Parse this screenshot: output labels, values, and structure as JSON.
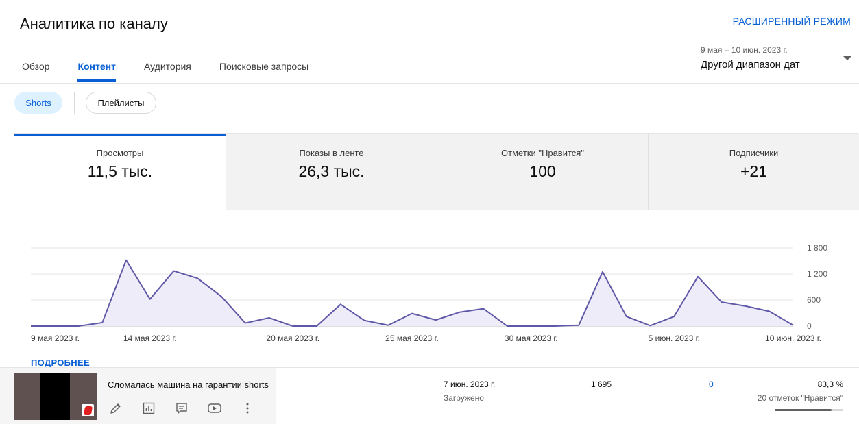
{
  "header": {
    "title": "Аналитика по каналу",
    "advanced_mode": "РАСШИРЕННЫЙ РЕЖИМ"
  },
  "tabs": [
    {
      "label": "Обзор",
      "active": false
    },
    {
      "label": "Контент",
      "active": true
    },
    {
      "label": "Аудитория",
      "active": false
    },
    {
      "label": "Поисковые запросы",
      "active": false
    }
  ],
  "date_range": {
    "range": "9 мая – 10 июн. 2023 г.",
    "label": "Другой диапазон дат"
  },
  "chips": [
    {
      "label": "Shorts",
      "selected": true
    },
    {
      "label": "Плейлисты",
      "selected": false
    }
  ],
  "metrics": [
    {
      "label": "Просмотры",
      "value": "11,5 тыс."
    },
    {
      "label": "Показы в ленте",
      "value": "26,3 тыс."
    },
    {
      "label": "Отметки \"Нравится\"",
      "value": "100"
    },
    {
      "label": "Подписчики",
      "value": "+21"
    }
  ],
  "chart_data": {
    "type": "area",
    "x": [
      "2023-05-09",
      "2023-05-10",
      "2023-05-11",
      "2023-05-12",
      "2023-05-13",
      "2023-05-14",
      "2023-05-15",
      "2023-05-16",
      "2023-05-17",
      "2023-05-18",
      "2023-05-19",
      "2023-05-20",
      "2023-05-21",
      "2023-05-22",
      "2023-05-23",
      "2023-05-24",
      "2023-05-25",
      "2023-05-26",
      "2023-05-27",
      "2023-05-28",
      "2023-05-29",
      "2023-05-30",
      "2023-05-31",
      "2023-06-01",
      "2023-06-02",
      "2023-06-03",
      "2023-06-04",
      "2023-06-05",
      "2023-06-06",
      "2023-06-07",
      "2023-06-08",
      "2023-06-09",
      "2023-06-10"
    ],
    "values": [
      0,
      0,
      0,
      80,
      1520,
      620,
      1270,
      1100,
      680,
      70,
      190,
      0,
      0,
      500,
      130,
      20,
      290,
      140,
      320,
      400,
      0,
      0,
      0,
      20,
      1250,
      220,
      10,
      220,
      1140,
      550,
      460,
      340,
      20
    ],
    "tick_labels": [
      "9 мая 2023 г.",
      "14 мая 2023 г.",
      "20 мая 2023 г.",
      "25 мая 2023 г.",
      "30 мая 2023 г.",
      "5 июн. 2023 г.",
      "10 июн. 2023 г."
    ],
    "tick_positions": [
      "2023-05-09",
      "2023-05-14",
      "2023-05-20",
      "2023-05-25",
      "2023-05-30",
      "2023-06-05",
      "2023-06-10"
    ],
    "y_tick_labels": [
      "1 800",
      "1 200",
      "600",
      "0"
    ],
    "y_ticks": [
      1800,
      1200,
      600,
      0
    ],
    "ylim": [
      0,
      1800
    ],
    "grid": true,
    "color": "#5f58a8",
    "fill": "#edecf8"
  },
  "more_link": "ПОДРОБНЕЕ",
  "video_row": {
    "title": "Сломалась машина на гарантии shorts",
    "actions": [
      "pencil-icon",
      "analytics-icon",
      "comments-icon",
      "youtube-icon",
      "more-vert-icon"
    ],
    "date": "7 июн. 2023 г.",
    "status": "Загружено",
    "views": "1 695",
    "comments": "0",
    "like_ratio": "83,3 %",
    "likes": "20 отметок \"Нравится\"",
    "like_fraction": 0.833
  }
}
